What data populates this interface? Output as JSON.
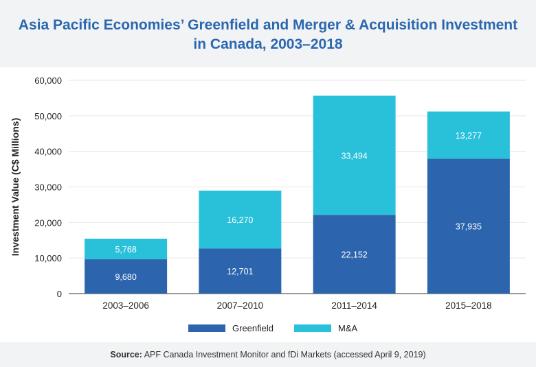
{
  "title_lines": [
    "Asia Pacific Economies’ Greenfield and Merger & Acquisition Investment",
    "in Canada, 2003–2018"
  ],
  "source": {
    "label": "Source:",
    "text": "APF Canada Investment Monitor and fDi Markets (accessed April 9, 2019)"
  },
  "colors": {
    "greenfield": "#2c65ae",
    "ma": "#29c0d9",
    "title": "#2a67b1",
    "band": "#f2f3f4",
    "grid": "#e6e6e6"
  },
  "chart_data": {
    "type": "bar",
    "stacked": true,
    "title": "Asia Pacific Economies’ Greenfield and Merger & Acquisition Investment in Canada, 2003–2018",
    "xlabel": "",
    "ylabel": "Investment Value (C$ Millions)",
    "categories": [
      "2003–2006",
      "2007–2010",
      "2011–2014",
      "2015–2018"
    ],
    "series": [
      {
        "name": "Greenfield",
        "values": [
          9680,
          12701,
          22152,
          37935
        ],
        "labels": [
          "9,680",
          "12,701",
          "22,152",
          "37,935"
        ]
      },
      {
        "name": "M&A",
        "values": [
          5768,
          16270,
          33494,
          13277
        ],
        "labels": [
          "5,768",
          "16,270",
          "33,494",
          "13,277"
        ]
      }
    ],
    "ylim": [
      0,
      60000
    ],
    "yticks": [
      0,
      10000,
      20000,
      30000,
      40000,
      50000,
      60000
    ],
    "ytick_labels": [
      "0",
      "10,000",
      "20,000",
      "30,000",
      "40,000",
      "50,000",
      "60,000"
    ],
    "grid": true,
    "legend_position": "bottom"
  }
}
